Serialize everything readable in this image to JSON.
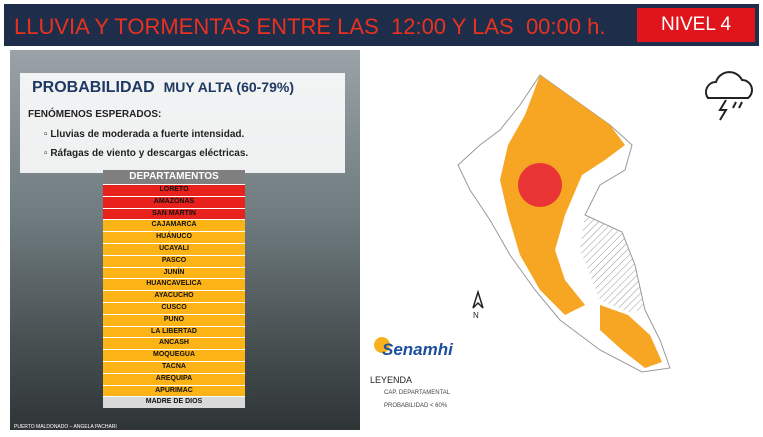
{
  "header": {
    "title": "LLUVIA Y TORMENTAS ENTRE LAS  12:00 Y LAS  00:00 h.",
    "level": "NIVEL 4"
  },
  "panel": {
    "probability_label": "PROBABILIDAD",
    "probability_value": "MUY ALTA (60-79%)",
    "phenomena_title": "FENÓMENOS ESPERADOS:",
    "phenomena": [
      "Lluvias de  moderada a fuerte  intensidad.",
      "Ráfagas de viento y descargas eléctricas."
    ]
  },
  "table": {
    "header": "DEPARTAMENTOS",
    "rows": [
      {
        "name": "LORETO",
        "color": "#e8211c"
      },
      {
        "name": "AMAZONAS",
        "color": "#e8211c"
      },
      {
        "name": "SAN MARTIN",
        "color": "#e8211c"
      },
      {
        "name": "CAJAMARCA",
        "color": "#fbb316"
      },
      {
        "name": "HUÁNUCO",
        "color": "#fbb316"
      },
      {
        "name": "UCAYALI",
        "color": "#fbb316"
      },
      {
        "name": "PASCO",
        "color": "#fbb316"
      },
      {
        "name": "JUNÍN",
        "color": "#fbb316"
      },
      {
        "name": "HUANCAVELICA",
        "color": "#fbb316"
      },
      {
        "name": "AYACUCHO",
        "color": "#fbb316"
      },
      {
        "name": "CUSCO",
        "color": "#fbb316"
      },
      {
        "name": "PUNO",
        "color": "#fbb316"
      },
      {
        "name": "LA LIBERTAD",
        "color": "#fbb316"
      },
      {
        "name": "ANCASH",
        "color": "#fbb316"
      },
      {
        "name": "MOQUEGUA",
        "color": "#fbb316"
      },
      {
        "name": "TACNA",
        "color": "#fbb316"
      },
      {
        "name": "AREQUIPA",
        "color": "#fbb316"
      },
      {
        "name": "APURIMAC",
        "color": "#fbb316"
      },
      {
        "name": "MADRE DE DIOS",
        "color": "#d9d9d9"
      }
    ]
  },
  "photo_caption": "PUERTO MALDONADO – ANGELA PACHARI",
  "logo": "Senamhi",
  "legend": {
    "title": "LEYENDA",
    "items": [
      "CAP. DEPARTAMENTAL",
      "PROBABILIDAD < 60%"
    ]
  }
}
